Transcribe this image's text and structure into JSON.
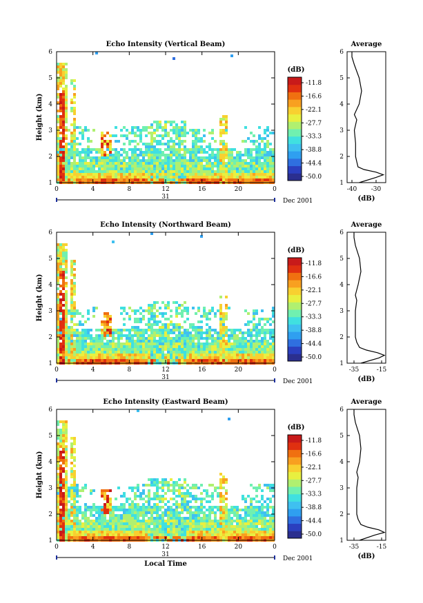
{
  "chart_data": {
    "type": "heatmap",
    "colorbar": {
      "unit": "(dB)",
      "ticks": [
        "-11.8",
        "-16.6",
        "-22.1",
        "-27.7",
        "-33.3",
        "-38.8",
        "-44.4",
        "-50.0"
      ],
      "colors": [
        "#2b2f8f",
        "#2b3fbf",
        "#2f6fe0",
        "#2f9ff0",
        "#3fc0f0",
        "#40e0e0",
        "#70f0b0",
        "#b0f070",
        "#e8f040",
        "#f8d030",
        "#f8a020",
        "#f07010",
        "#e03010",
        "#c81a1a"
      ]
    },
    "x_axis": {
      "ticks": [
        "0",
        "4",
        "8",
        "12",
        "16",
        "20",
        "0"
      ],
      "xlim": [
        0,
        24
      ],
      "date_label": "31",
      "date_suffix": "Dec 2001",
      "xlabel": "Local Time"
    },
    "y_axis": {
      "label": "Height (km)",
      "ticks": [
        "1",
        "2",
        "3",
        "4",
        "5",
        "6"
      ],
      "ylim": [
        1,
        6
      ]
    },
    "panels": [
      {
        "title": "Echo Intensity (Vertical Beam)",
        "profile_title": "Average",
        "profile_xlabel": "(dB)",
        "profile_xticks": [
          "-40",
          "-30"
        ],
        "profile_xlim": [
          -42,
          -26
        ],
        "profile": {
          "height": [
            1.0,
            1.2,
            1.3,
            1.4,
            1.5,
            1.6,
            1.8,
            2.0,
            2.5,
            3.0,
            3.4,
            3.6,
            4.0,
            4.5,
            5.0,
            5.5,
            5.8,
            6.0
          ],
          "db": [
            -37,
            -30,
            -27,
            -30,
            -35,
            -37.5,
            -38,
            -38.5,
            -38.5,
            -39,
            -38,
            -39,
            -37,
            -36,
            -37,
            -39,
            -40,
            -40
          ]
        }
      },
      {
        "title": "Echo Intensity (Northward Beam)",
        "profile_title": "Average",
        "profile_xlabel": "(dB)",
        "profile_xticks": [
          "-35",
          "-15"
        ],
        "profile_xlim": [
          -40,
          -12
        ],
        "profile": {
          "height": [
            1.0,
            1.2,
            1.3,
            1.4,
            1.5,
            1.6,
            1.8,
            2.0,
            2.5,
            3.0,
            3.4,
            3.6,
            4.0,
            4.5,
            5.0,
            5.5,
            5.8,
            6.0
          ],
          "db": [
            -30,
            -17,
            -13,
            -18,
            -26,
            -31,
            -33,
            -34,
            -34,
            -34,
            -33,
            -34,
            -32,
            -30,
            -31,
            -34,
            -35,
            -35
          ]
        }
      },
      {
        "title": "Echo Intensity (Eastward Beam)",
        "profile_title": "Average",
        "profile_xlabel": "(dB)",
        "profile_xticks": [
          "-35",
          "-15"
        ],
        "profile_xlim": [
          -40,
          -12
        ],
        "profile": {
          "height": [
            1.0,
            1.2,
            1.3,
            1.4,
            1.5,
            1.6,
            1.8,
            2.0,
            2.5,
            3.0,
            3.4,
            3.6,
            4.0,
            4.5,
            5.0,
            5.5,
            5.8,
            6.0
          ],
          "db": [
            -31,
            -20,
            -13,
            -17,
            -25,
            -30,
            -32,
            -33,
            -33,
            -33,
            -32,
            -33,
            -31,
            -30,
            -31,
            -34,
            -35,
            -35
          ]
        }
      }
    ]
  }
}
